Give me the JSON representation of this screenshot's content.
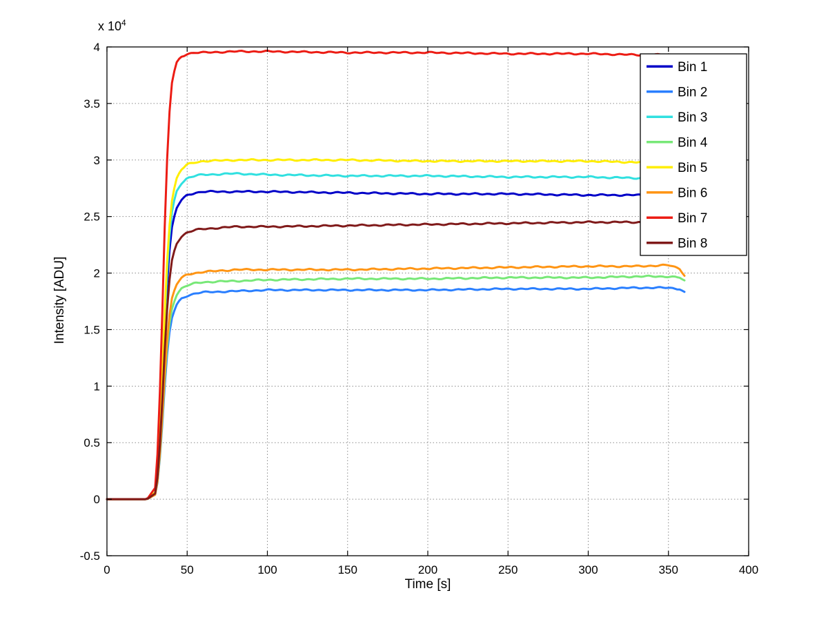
{
  "figure": {
    "background": "#ffffff"
  },
  "chart_data": {
    "type": "line",
    "title": "",
    "xlabel": "Time [s]",
    "ylabel": "Intensity [ADU]",
    "y_exponent_label": "x 10",
    "y_exponent": "4",
    "xlim": [
      0,
      400
    ],
    "ylim": [
      -5000,
      40000
    ],
    "grid": true,
    "x_ticks": [
      0,
      50,
      100,
      150,
      200,
      250,
      300,
      350,
      400
    ],
    "x_tick_labels": [
      "0",
      "50",
      "100",
      "150",
      "200",
      "250",
      "300",
      "350",
      "400"
    ],
    "y_ticks": [
      -5000,
      0,
      5000,
      10000,
      15000,
      20000,
      25000,
      30000,
      35000,
      40000
    ],
    "y_tick_labels": [
      "-0.5",
      "0",
      "0.5",
      "1",
      "1.5",
      "2",
      "2.5",
      "3",
      "3.5",
      "4"
    ],
    "legend": {
      "position": "top-right",
      "background": "#ffffff",
      "border_color": "#000000"
    },
    "x": [
      0,
      25,
      30,
      32,
      34,
      36,
      38,
      40,
      43,
      46,
      50,
      55,
      60,
      80,
      100,
      150,
      200,
      250,
      300,
      330,
      350,
      357,
      360
    ],
    "series": [
      {
        "name": "Bin 1",
        "color": "#0000c8",
        "values": [
          0,
          0,
          500,
          2700,
          8200,
          15000,
          20400,
          23700,
          25600,
          26400,
          26900,
          27100,
          27200,
          27200,
          27200,
          27100,
          27000,
          27000,
          26900,
          26900,
          26800,
          26800,
          26800
        ]
      },
      {
        "name": "Bin 2",
        "color": "#2a7fff",
        "values": [
          0,
          0,
          400,
          1800,
          5500,
          10000,
          13700,
          15800,
          17100,
          17700,
          18000,
          18200,
          18300,
          18400,
          18500,
          18500,
          18500,
          18600,
          18600,
          18700,
          18700,
          18600,
          18300
        ]
      },
      {
        "name": "Bin 3",
        "color": "#30e0e0",
        "values": [
          0,
          0,
          600,
          2900,
          8600,
          15800,
          21600,
          25000,
          27100,
          27900,
          28400,
          28600,
          28700,
          28800,
          28700,
          28600,
          28600,
          28500,
          28500,
          28400,
          28400,
          28300,
          28200
        ]
      },
      {
        "name": "Bin 4",
        "color": "#78e878",
        "values": [
          0,
          0,
          400,
          1900,
          5800,
          10600,
          14400,
          16600,
          18000,
          18600,
          18900,
          19100,
          19200,
          19300,
          19400,
          19500,
          19500,
          19600,
          19600,
          19700,
          19700,
          19600,
          19300
        ]
      },
      {
        "name": "Bin 5",
        "color": "#ffee00",
        "values": [
          0,
          0,
          600,
          3000,
          9000,
          16500,
          22500,
          26100,
          28200,
          29100,
          29600,
          29800,
          29900,
          30000,
          30000,
          30000,
          29900,
          29900,
          29900,
          29800,
          29800,
          29800,
          29700
        ]
      },
      {
        "name": "Bin 6",
        "color": "#ff9514",
        "values": [
          0,
          0,
          400,
          2000,
          6100,
          11100,
          15100,
          17500,
          18900,
          19500,
          19900,
          20000,
          20100,
          20300,
          20300,
          20300,
          20400,
          20500,
          20600,
          20600,
          20700,
          20400,
          19800
        ]
      },
      {
        "name": "Bin 7",
        "color": "#ec1c14",
        "values": [
          0,
          0,
          1000,
          5000,
          14000,
          24000,
          32000,
          36500,
          38500,
          39100,
          39400,
          39500,
          39500,
          39600,
          39600,
          39500,
          39500,
          39400,
          39400,
          39300,
          39300,
          39300,
          39200
        ]
      },
      {
        "name": "Bin 8",
        "color": "#801a1a",
        "values": [
          0,
          0,
          500,
          2400,
          7200,
          13200,
          18000,
          20800,
          22500,
          23200,
          23600,
          23800,
          23900,
          24100,
          24100,
          24200,
          24300,
          24400,
          24500,
          24500,
          24600,
          24600,
          24500
        ]
      }
    ]
  }
}
